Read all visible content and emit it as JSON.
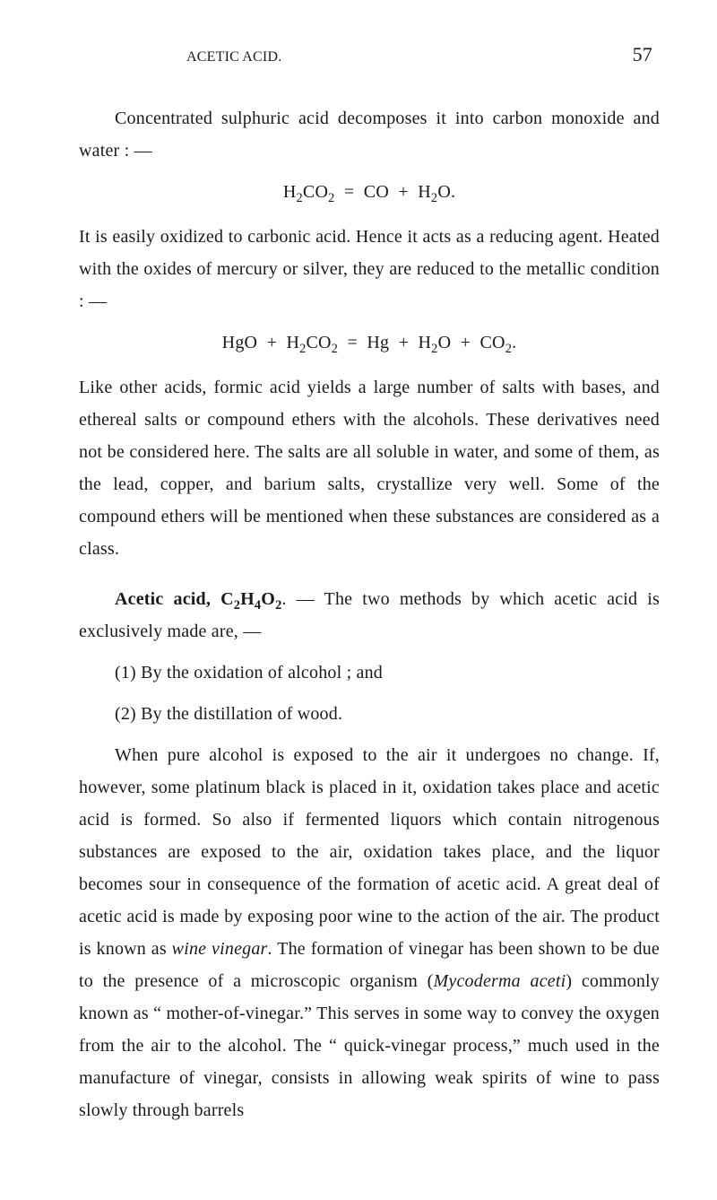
{
  "header": {
    "running_title": "ACETIC ACID.",
    "page_number": "57"
  },
  "paragraphs": {
    "p1": "Concentrated sulphuric acid decomposes it into carbon monoxide and water : —",
    "p2a": "It is easily oxidized to carbonic acid. Hence it acts as a reducing agent. Heated with the oxides of mercury or silver, they are reduced to the metallic condition : —",
    "p3": "Like other acids, formic acid yields a large number of salts with bases, and ethereal salts or compound ethers with the alcohols. These derivatives need not be considered here. The salts are all soluble in water, and some of them, as the lead, copper, and barium salts, crystallize very well. Some of the compound ethers will be mentioned when these substances are considered as a class.",
    "acetic_lead_bold": "Acetic acid, C",
    "acetic_lead_rest": ". — The two methods by which acetic acid is exclusively made are, —",
    "item1": "(1) By the oxidation of alcohol ; and",
    "item2": "(2) By the distillation of wood.",
    "p5a": "When pure alcohol is exposed to the air it undergoes no change. If, however, some platinum black is placed in it, oxidation takes place and acetic acid is formed. So also if fermented liquors which contain nitrogenous substances are exposed to the air, oxidation takes place, and the liquor becomes sour in consequence of the formation of acetic acid. A great deal of acetic acid is made by exposing poor wine to the action of the air. The product is known as ",
    "p5_vinegar": "wine vinegar",
    "p5b": ". The formation of vinegar has been shown to be due to the presence of a microscopic organism (",
    "p5_myco": "Mycoderma aceti",
    "p5c": ") commonly known as “ mother-of-vinegar.” This serves in some way to convey the oxygen from the air to the alcohol. The “ quick-vinegar process,” much used in the manufacture of vinegar, consists in allowing weak spirits of wine to pass slowly through barrels"
  },
  "equations": {
    "eq1": {
      "lhs_a": "H",
      "lhs_b": "CO",
      "rhs_a": "CO",
      "rhs_b": "H",
      "rhs_c": "O."
    },
    "eq2": {
      "a": "HgO",
      "b": "H",
      "c": "CO",
      "d": "Hg",
      "e": "H",
      "f": "O",
      "g": "CO"
    }
  },
  "subs": {
    "two": "2",
    "four": "4"
  },
  "formula_labels": {
    "H": "H",
    "O": "O"
  }
}
